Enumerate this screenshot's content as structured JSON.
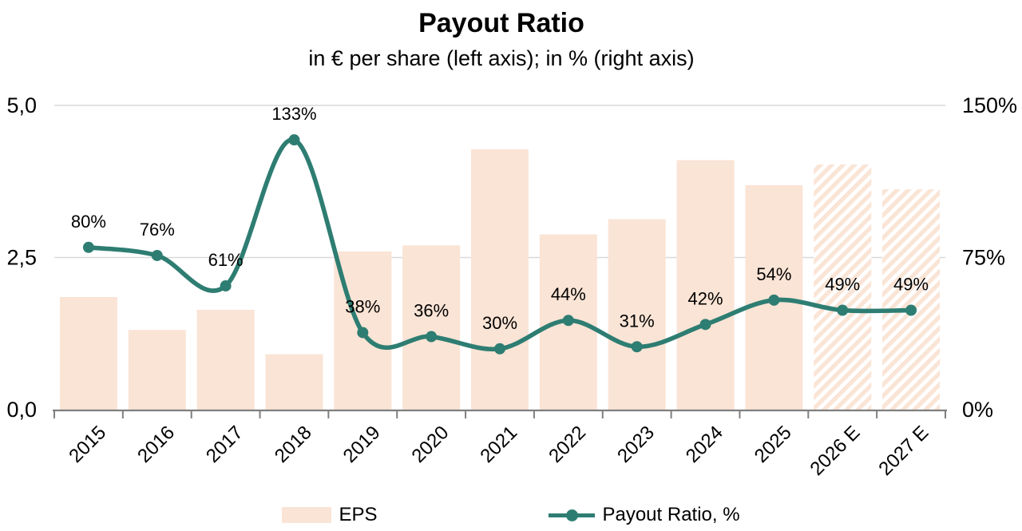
{
  "title": "Payout Ratio",
  "subtitle": "in € per share (left axis); in % (right axis)",
  "legend": [
    {
      "label": "EPS",
      "swatch": "bar-swatch"
    },
    {
      "label": "Payout Ratio, %",
      "swatch": "line-swatch"
    }
  ],
  "colors": {
    "bar": "#fae4d5",
    "line": "#2e7d72",
    "grid": "#d9d9d9",
    "axis": "#7f7f7f",
    "text": "#000000"
  },
  "chart_data": {
    "type": "bar",
    "subtype": "bar+line dual axis",
    "categories": [
      "2015",
      "2016",
      "2017",
      "2018",
      "2019",
      "2020",
      "2021",
      "2022",
      "2023",
      "2024",
      "2025",
      "2026 E",
      "2027 E"
    ],
    "series": [
      {
        "name": "EPS",
        "type": "bar",
        "axis": "left",
        "values": [
          1.85,
          1.31,
          1.64,
          0.91,
          2.6,
          2.7,
          4.28,
          2.88,
          3.13,
          4.1,
          3.69,
          4.03,
          3.62
        ],
        "estimated": [
          false,
          false,
          false,
          false,
          false,
          false,
          false,
          false,
          false,
          false,
          false,
          true,
          true
        ]
      },
      {
        "name": "Payout Ratio, %",
        "type": "line",
        "axis": "right",
        "values": [
          80,
          76,
          61,
          133,
          38,
          36,
          30,
          44,
          31,
          42,
          54,
          49,
          49
        ],
        "labels": [
          "80%",
          "76%",
          "61%",
          "133%",
          "38%",
          "36%",
          "30%",
          "44%",
          "31%",
          "42%",
          "54%",
          "49%",
          "49%"
        ]
      }
    ],
    "left_axis": {
      "range": [
        0,
        5
      ],
      "tick_values": [
        0,
        2.5,
        5
      ],
      "tick_labels": [
        "0,0",
        "2,5",
        "5,0"
      ]
    },
    "right_axis": {
      "range": [
        0,
        150
      ],
      "tick_values": [
        0,
        75,
        150
      ],
      "tick_labels": [
        "0%",
        "75%",
        "150%"
      ]
    },
    "grid": "horizontal only",
    "legend_position": "bottom"
  }
}
